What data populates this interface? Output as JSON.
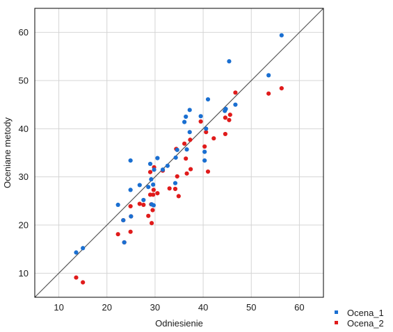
{
  "chart_data": {
    "type": "scatter",
    "title": "",
    "xlabel": "Odniesienie",
    "ylabel": "Oceniane metody",
    "xlim": [
      5,
      65
    ],
    "ylim": [
      5,
      65
    ],
    "xticks": [
      10,
      20,
      30,
      40,
      50,
      60
    ],
    "yticks": [
      10,
      20,
      30,
      40,
      50,
      60
    ],
    "grid": true,
    "reference_line": "y = x",
    "legend_position": "bottom-right, outside plot",
    "series": [
      {
        "name": "Ocena_1",
        "color": "#1a6fd1",
        "marker": "circle",
        "points": [
          [
            13.6,
            14.3
          ],
          [
            15.0,
            15.2
          ],
          [
            22.3,
            24.2
          ],
          [
            23.4,
            21.0
          ],
          [
            23.6,
            16.4
          ],
          [
            24.9,
            33.4
          ],
          [
            24.9,
            27.3
          ],
          [
            25.0,
            21.8
          ],
          [
            26.8,
            28.3
          ],
          [
            27.6,
            25.2
          ],
          [
            28.6,
            27.9
          ],
          [
            29.0,
            32.7
          ],
          [
            29.3,
            24.3
          ],
          [
            29.2,
            29.5
          ],
          [
            29.6,
            28.4
          ],
          [
            29.7,
            24.1
          ],
          [
            29.8,
            31.5
          ],
          [
            30.5,
            33.9
          ],
          [
            31.6,
            31.5
          ],
          [
            32.6,
            32.3
          ],
          [
            34.2,
            28.7
          ],
          [
            34.3,
            34.0
          ],
          [
            34.6,
            35.6
          ],
          [
            36.1,
            41.4
          ],
          [
            36.4,
            42.5
          ],
          [
            36.6,
            35.7
          ],
          [
            37.2,
            43.9
          ],
          [
            37.2,
            39.3
          ],
          [
            39.5,
            42.6
          ],
          [
            40.3,
            33.4
          ],
          [
            40.3,
            35.2
          ],
          [
            40.6,
            40.0
          ],
          [
            41.0,
            46.1
          ],
          [
            44.5,
            43.7
          ],
          [
            44.7,
            44.1
          ],
          [
            45.4,
            54.0
          ],
          [
            46.7,
            45.0
          ],
          [
            53.6,
            51.1
          ],
          [
            56.3,
            59.4
          ]
        ]
      },
      {
        "name": "Ocena_2",
        "color": "#e01b1b",
        "marker": "circle",
        "points": [
          [
            13.6,
            9.1
          ],
          [
            15.0,
            8.1
          ],
          [
            22.3,
            18.1
          ],
          [
            23.4,
            21.0
          ],
          [
            23.6,
            16.4
          ],
          [
            24.9,
            18.6
          ],
          [
            24.9,
            23.9
          ],
          [
            25.0,
            21.8
          ],
          [
            26.8,
            24.4
          ],
          [
            27.6,
            24.2
          ],
          [
            28.6,
            21.9
          ],
          [
            29.0,
            26.3
          ],
          [
            29.0,
            31.0
          ],
          [
            29.2,
            24.3
          ],
          [
            29.3,
            20.4
          ],
          [
            29.5,
            23.1
          ],
          [
            29.6,
            26.3
          ],
          [
            29.7,
            27.3
          ],
          [
            29.8,
            32.0
          ],
          [
            30.5,
            26.6
          ],
          [
            31.6,
            31.3
          ],
          [
            33.0,
            27.6
          ],
          [
            34.2,
            27.5
          ],
          [
            34.6,
            30.1
          ],
          [
            34.4,
            35.8
          ],
          [
            34.9,
            26.0
          ],
          [
            36.1,
            36.9
          ],
          [
            36.4,
            33.8
          ],
          [
            36.6,
            30.7
          ],
          [
            37.3,
            37.7
          ],
          [
            37.4,
            31.6
          ],
          [
            39.5,
            41.5
          ],
          [
            40.3,
            36.3
          ],
          [
            40.6,
            39.3
          ],
          [
            41.0,
            31.1
          ],
          [
            42.2,
            38.0
          ],
          [
            44.6,
            38.9
          ],
          [
            44.6,
            42.3
          ],
          [
            45.4,
            41.8
          ],
          [
            45.6,
            42.9
          ],
          [
            46.7,
            47.5
          ],
          [
            53.6,
            47.3
          ],
          [
            56.3,
            48.4
          ]
        ]
      }
    ]
  }
}
